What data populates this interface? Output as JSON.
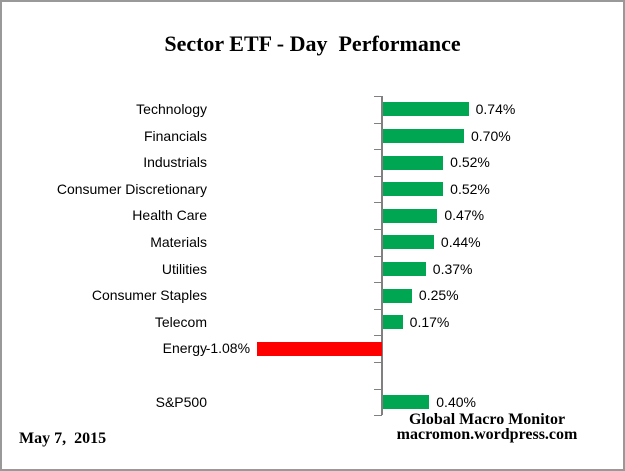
{
  "chart_data": {
    "type": "bar",
    "orientation": "horizontal",
    "title": "Sector ETF - Day  Performance",
    "unit": "%",
    "categories": [
      "Technology",
      "Financials",
      "Industrials",
      "Consumer Discretionary",
      "Health Care",
      "Materials",
      "Utilities",
      "Consumer Staples",
      "Telecom",
      "Energy",
      "",
      "S&P500"
    ],
    "values": [
      0.74,
      0.7,
      0.52,
      0.52,
      0.47,
      0.44,
      0.37,
      0.25,
      0.17,
      -1.08,
      null,
      0.4
    ],
    "value_labels": [
      "0.74%",
      "0.70%",
      "0.52%",
      "0.52%",
      "0.47%",
      "0.44%",
      "0.37%",
      "0.25%",
      "0.17%",
      "-1.08%",
      "",
      "0.40%"
    ],
    "xlim": [
      -1.2,
      2.1
    ],
    "grid": "off",
    "legend": "none",
    "value_axis_labels": "hidden"
  },
  "colors": {
    "positive_bar": "#00A651",
    "negative_bar": "#FF0000",
    "axis": "#808080",
    "frame_border": "#999999"
  },
  "footer": {
    "date": "May 7,  2015",
    "source_line1": "Global Macro Monitor",
    "source_line2": "macromon.wordpress.com"
  }
}
